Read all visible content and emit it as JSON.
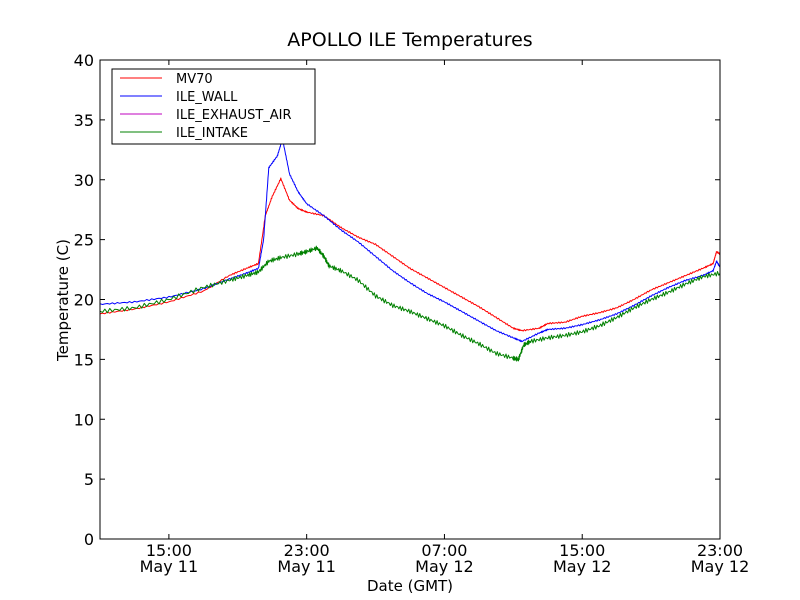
{
  "chart_data": {
    "type": "line",
    "title": "APOLLO ILE Temperatures",
    "xlabel": "Date (GMT)",
    "ylabel": "Temperature (C)",
    "x_range_hours": [
      11,
      47
    ],
    "ylim": [
      0,
      40
    ],
    "yticks": [
      0,
      5,
      10,
      15,
      20,
      25,
      30,
      35,
      40
    ],
    "xticks": [
      {
        "hour": 15,
        "time": "15:00",
        "date": "May 11"
      },
      {
        "hour": 23,
        "time": "23:00",
        "date": "May 11"
      },
      {
        "hour": 31,
        "time": "07:00",
        "date": "May 12"
      },
      {
        "hour": 39,
        "time": "15:00",
        "date": "May 12"
      },
      {
        "hour": 47,
        "time": "23:00",
        "date": "May 12"
      }
    ],
    "grid": false,
    "legend_position": "upper left",
    "series": [
      {
        "name": "MV70",
        "color": "#ff0000",
        "points": [
          [
            11,
            18.8
          ],
          [
            13,
            19.2
          ],
          [
            15,
            19.8
          ],
          [
            17,
            20.7
          ],
          [
            18.5,
            22.0
          ],
          [
            19.5,
            22.6
          ],
          [
            20.2,
            23.0
          ],
          [
            20.6,
            27.0
          ],
          [
            21.0,
            28.6
          ],
          [
            21.5,
            30.1
          ],
          [
            22.0,
            28.3
          ],
          [
            22.5,
            27.6
          ],
          [
            23.0,
            27.3
          ],
          [
            24.0,
            27.0
          ],
          [
            25.0,
            26.0
          ],
          [
            26.0,
            25.2
          ],
          [
            27.0,
            24.6
          ],
          [
            28.0,
            23.6
          ],
          [
            29.0,
            22.6
          ],
          [
            30.0,
            21.8
          ],
          [
            31.0,
            21.0
          ],
          [
            32.0,
            20.2
          ],
          [
            33.0,
            19.4
          ],
          [
            34.0,
            18.5
          ],
          [
            35.0,
            17.6
          ],
          [
            35.5,
            17.4
          ],
          [
            36.5,
            17.6
          ],
          [
            37.0,
            18.0
          ],
          [
            38.0,
            18.1
          ],
          [
            39.0,
            18.6
          ],
          [
            40.0,
            18.9
          ],
          [
            41.0,
            19.3
          ],
          [
            42.0,
            20.0
          ],
          [
            43.0,
            20.8
          ],
          [
            44.0,
            21.4
          ],
          [
            45.0,
            22.0
          ],
          [
            46.0,
            22.6
          ],
          [
            46.6,
            23.0
          ],
          [
            46.8,
            24.0
          ],
          [
            47.0,
            23.8
          ]
        ]
      },
      {
        "name": "ILE_WALL",
        "color": "#0000ff",
        "points": [
          [
            11,
            19.6
          ],
          [
            13,
            19.8
          ],
          [
            15,
            20.2
          ],
          [
            17,
            20.9
          ],
          [
            18.5,
            21.7
          ],
          [
            19.5,
            22.2
          ],
          [
            20.2,
            22.6
          ],
          [
            20.5,
            25.0
          ],
          [
            20.8,
            31.0
          ],
          [
            21.3,
            32.0
          ],
          [
            21.6,
            33.4
          ],
          [
            22.0,
            30.5
          ],
          [
            22.5,
            29.0
          ],
          [
            23.0,
            28.0
          ],
          [
            24.0,
            27.0
          ],
          [
            25.0,
            25.8
          ],
          [
            26.0,
            24.8
          ],
          [
            27.0,
            23.6
          ],
          [
            28.0,
            22.4
          ],
          [
            29.0,
            21.4
          ],
          [
            30.0,
            20.5
          ],
          [
            31.0,
            19.8
          ],
          [
            32.0,
            19.0
          ],
          [
            33.0,
            18.2
          ],
          [
            34.0,
            17.4
          ],
          [
            35.0,
            16.8
          ],
          [
            35.5,
            16.5
          ],
          [
            36.5,
            17.2
          ],
          [
            37.0,
            17.5
          ],
          [
            38.0,
            17.6
          ],
          [
            39.0,
            17.9
          ],
          [
            40.0,
            18.3
          ],
          [
            41.0,
            18.8
          ],
          [
            42.0,
            19.5
          ],
          [
            43.0,
            20.3
          ],
          [
            44.0,
            21.0
          ],
          [
            45.0,
            21.6
          ],
          [
            46.0,
            22.0
          ],
          [
            46.6,
            22.4
          ],
          [
            46.8,
            23.2
          ],
          [
            47.0,
            22.7
          ]
        ]
      },
      {
        "name": "ILE_EXHAUST_AIR",
        "color": "#bf00bf",
        "points": []
      },
      {
        "name": "ILE_INTAKE",
        "color": "#008000",
        "points": [
          [
            11,
            19.0
          ],
          [
            13,
            19.3
          ],
          [
            15,
            20.0
          ],
          [
            17,
            21.0
          ],
          [
            18.5,
            21.6
          ],
          [
            19.5,
            22.0
          ],
          [
            20.2,
            22.3
          ],
          [
            20.8,
            23.2
          ],
          [
            21.5,
            23.5
          ],
          [
            22.5,
            23.8
          ],
          [
            23.0,
            24.0
          ],
          [
            23.6,
            24.3
          ],
          [
            24.0,
            23.6
          ],
          [
            24.3,
            22.8
          ],
          [
            25.0,
            22.4
          ],
          [
            26.0,
            21.6
          ],
          [
            27.0,
            20.3
          ],
          [
            28.0,
            19.5
          ],
          [
            29.0,
            19.0
          ],
          [
            30.0,
            18.4
          ],
          [
            31.0,
            17.8
          ],
          [
            32.0,
            17.0
          ],
          [
            33.0,
            16.3
          ],
          [
            34.0,
            15.5
          ],
          [
            35.0,
            15.1
          ],
          [
            35.3,
            15.0
          ],
          [
            35.6,
            16.2
          ],
          [
            36.0,
            16.5
          ],
          [
            37.0,
            16.8
          ],
          [
            38.0,
            17.0
          ],
          [
            39.0,
            17.3
          ],
          [
            40.0,
            17.8
          ],
          [
            41.0,
            18.5
          ],
          [
            42.0,
            19.3
          ],
          [
            43.0,
            20.0
          ],
          [
            44.0,
            20.6
          ],
          [
            45.0,
            21.3
          ],
          [
            46.0,
            21.9
          ],
          [
            47.0,
            22.2
          ]
        ]
      }
    ]
  }
}
